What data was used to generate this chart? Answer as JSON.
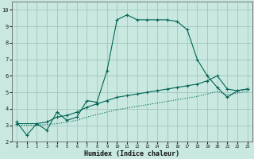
{
  "xlabel": "Humidex (Indice chaleur)",
  "bg_color": "#c8e8e0",
  "grid_color": "#9bbfba",
  "line_color": "#006655",
  "xlim": [
    -0.5,
    23.5
  ],
  "ylim": [
    2.0,
    10.5
  ],
  "xticks": [
    0,
    1,
    2,
    3,
    4,
    5,
    6,
    7,
    8,
    9,
    10,
    11,
    12,
    13,
    14,
    15,
    16,
    17,
    18,
    19,
    20,
    21,
    22,
    23
  ],
  "yticks": [
    2,
    3,
    4,
    5,
    6,
    7,
    8,
    9,
    10
  ],
  "line1_x": [
    0,
    1,
    2,
    3,
    4,
    5,
    6,
    7,
    8,
    9,
    10,
    11,
    12,
    13,
    14,
    15,
    16,
    17,
    18,
    19,
    20,
    21,
    22,
    23
  ],
  "line1_y": [
    3.2,
    2.4,
    3.1,
    2.7,
    3.8,
    3.3,
    3.5,
    4.5,
    4.4,
    6.3,
    9.4,
    9.7,
    9.4,
    9.4,
    9.4,
    9.4,
    9.3,
    8.8,
    7.0,
    6.0,
    5.3,
    4.7,
    5.1,
    5.2
  ],
  "line2_x": [
    0,
    2,
    3,
    4,
    5,
    6,
    7,
    8,
    9,
    10,
    11,
    12,
    13,
    14,
    15,
    16,
    17,
    18,
    19,
    20,
    21,
    22,
    23
  ],
  "line2_y": [
    3.1,
    3.1,
    3.2,
    3.5,
    3.6,
    3.8,
    4.1,
    4.3,
    4.5,
    4.7,
    4.8,
    4.9,
    5.0,
    5.1,
    5.2,
    5.3,
    5.4,
    5.5,
    5.7,
    6.0,
    5.2,
    5.1,
    5.2
  ],
  "line3_x": [
    0,
    2,
    3,
    4,
    5,
    6,
    7,
    8,
    9,
    10,
    11,
    12,
    13,
    14,
    15,
    16,
    17,
    18,
    19,
    20,
    21,
    22,
    23
  ],
  "line3_y": [
    3.0,
    3.0,
    3.05,
    3.1,
    3.2,
    3.3,
    3.5,
    3.65,
    3.8,
    3.95,
    4.05,
    4.15,
    4.25,
    4.35,
    4.45,
    4.55,
    4.65,
    4.75,
    4.9,
    5.05,
    4.85,
    4.95,
    5.05
  ]
}
